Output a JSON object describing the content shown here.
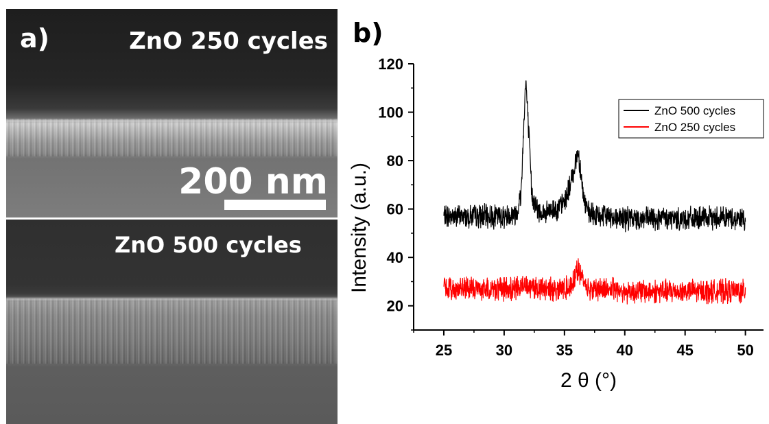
{
  "panel_a": {
    "label": "a)",
    "top_image_label": "ZnO 250 cycles",
    "scale_bar_text": "200 nm",
    "bottom_image_label": "ZnO 500 cycles"
  },
  "panel_b": {
    "label": "b)"
  },
  "chart_data": {
    "type": "line",
    "xlabel": "2 θ (°)",
    "ylabel": "Intensity (a.u.)",
    "xlim": [
      22.5,
      51.5
    ],
    "ylim": [
      10,
      120
    ],
    "xticks": [
      25,
      30,
      35,
      40,
      45,
      50
    ],
    "yticks": [
      20,
      40,
      60,
      80,
      100,
      120
    ],
    "legend_position": "top-right",
    "series": [
      {
        "name": "ZnO 500 cycles",
        "color": "#000000",
        "x": [
          25,
          26,
          27,
          28,
          29,
          30,
          31,
          31.4,
          31.7,
          31.8,
          32.0,
          32.3,
          32.8,
          33.5,
          34.0,
          34.5,
          35.0,
          35.5,
          35.9,
          36.1,
          36.3,
          36.6,
          37.0,
          38,
          39,
          40,
          41,
          42,
          43,
          44,
          45,
          46,
          47,
          48,
          49,
          50
        ],
        "y": [
          57,
          57,
          57,
          57,
          57,
          57,
          58,
          66,
          104,
          113,
          95,
          66,
          59,
          58,
          60,
          60,
          63,
          70,
          79,
          84,
          78,
          64,
          58,
          57,
          57,
          56,
          56,
          56,
          56,
          56,
          56,
          56,
          56,
          57,
          56,
          56
        ]
      },
      {
        "name": "ZnO 250 cycles",
        "color": "#ff0000",
        "x": [
          25,
          26,
          27,
          28,
          29,
          30,
          31,
          31.5,
          31.8,
          32.2,
          33,
          34,
          35,
          35.5,
          35.9,
          36.1,
          36.4,
          37,
          38,
          39,
          40,
          41,
          42,
          43,
          44,
          45,
          46,
          47,
          48,
          49,
          50
        ],
        "y": [
          27,
          27,
          27,
          27,
          27,
          27,
          27,
          28,
          30,
          28,
          27,
          27,
          27,
          28,
          33,
          35,
          32,
          27,
          27,
          27,
          26,
          26,
          26,
          26,
          26,
          26,
          26,
          26,
          26,
          26,
          26
        ]
      }
    ]
  }
}
